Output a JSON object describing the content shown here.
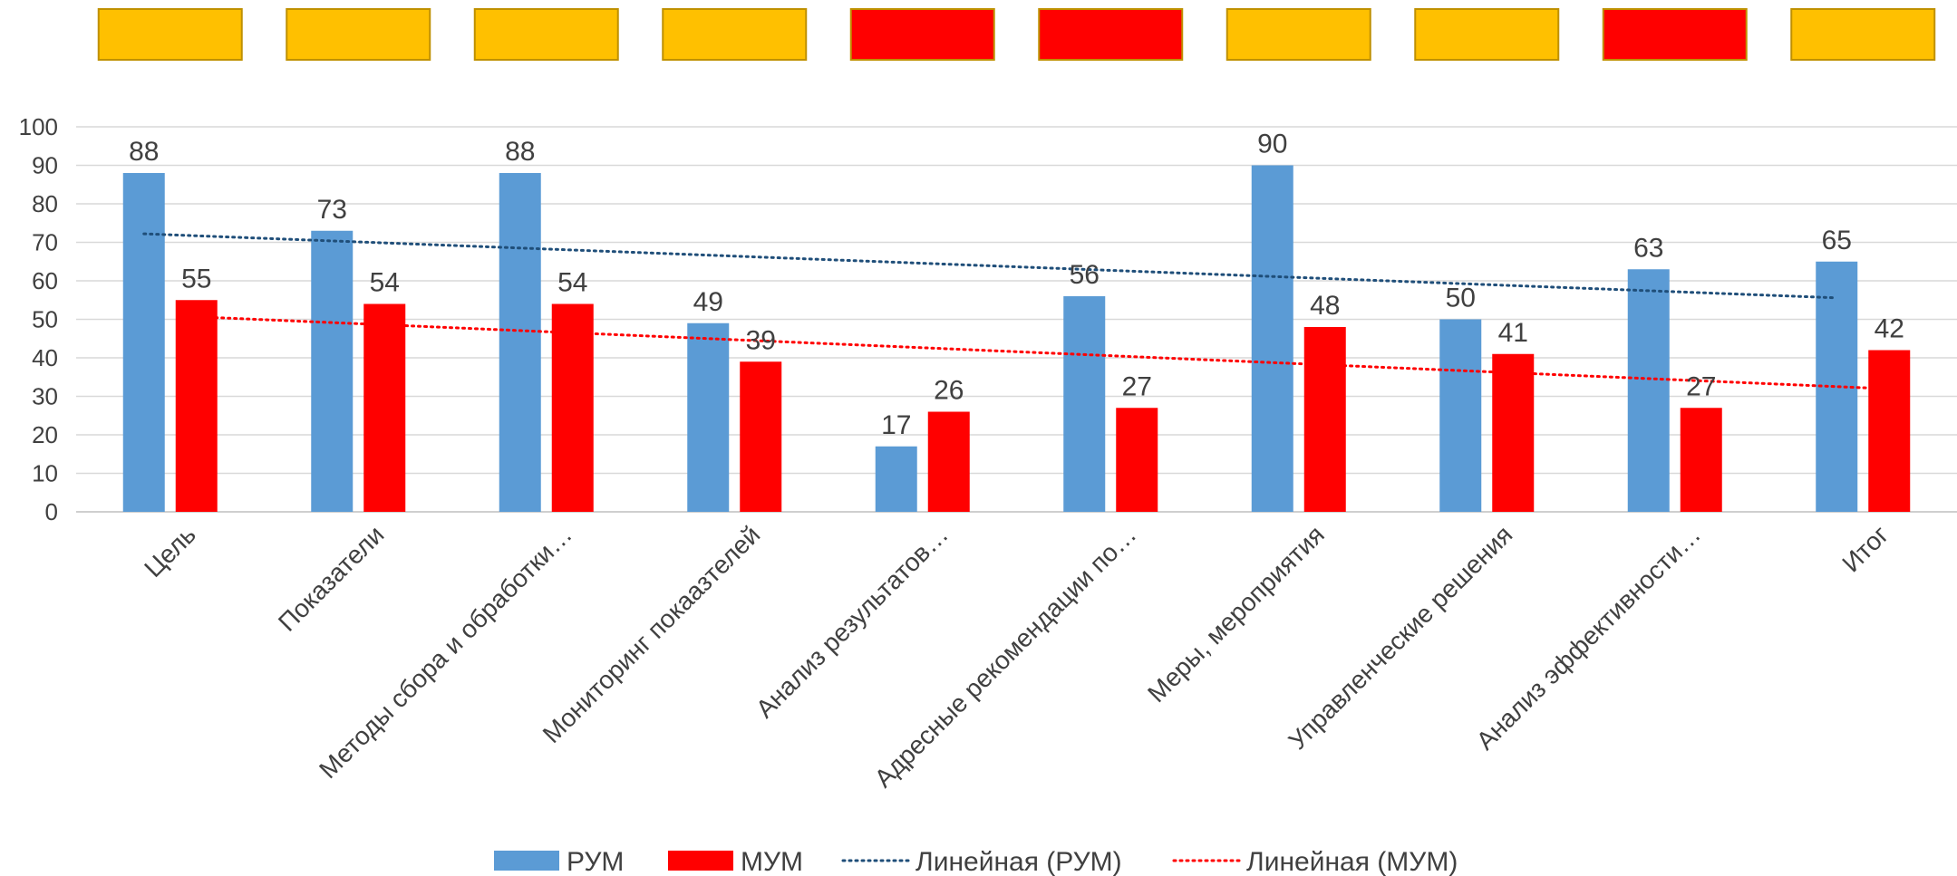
{
  "chart_data": {
    "type": "bar",
    "categories": [
      "Цель",
      "Показатели",
      "Методы сбора и обработки…",
      "Мониторинг покаазтелей",
      "Анализ результатов…",
      "Адресные рекомендации по…",
      "Меры, мероприятия",
      "Управленческие решения",
      "Анализ эффективности…",
      "Итог"
    ],
    "series": [
      {
        "name": "РУМ",
        "color": "#5B9BD5",
        "values": [
          88,
          73,
          88,
          49,
          17,
          56,
          90,
          50,
          63,
          65
        ]
      },
      {
        "name": "МУМ",
        "color": "#FF0000",
        "values": [
          55,
          54,
          54,
          39,
          26,
          27,
          48,
          41,
          27,
          42
        ]
      }
    ],
    "trendlines": [
      {
        "name": "Линейная (РУМ)",
        "color": "#1F4E79",
        "style": "dotted",
        "of_series": "РУМ"
      },
      {
        "name": "Линейная (МУМ)",
        "color": "#FF0000",
        "style": "dotted",
        "of_series": "МУМ"
      }
    ],
    "ylim": [
      0,
      100
    ],
    "yticks": [
      "0",
      "10",
      "20",
      "30",
      "40",
      "50",
      "60",
      "70",
      "80",
      "90",
      "100"
    ],
    "grid": true,
    "legend_position": "bottom",
    "data_labels": true
  },
  "status_indicators": [
    {
      "color": "#FFC000"
    },
    {
      "color": "#FFC000"
    },
    {
      "color": "#FFC000"
    },
    {
      "color": "#FFC000"
    },
    {
      "color": "#FF0000"
    },
    {
      "color": "#FF0000"
    },
    {
      "color": "#FFC000"
    },
    {
      "color": "#FFC000"
    },
    {
      "color": "#FF0000"
    },
    {
      "color": "#FFC000"
    }
  ]
}
